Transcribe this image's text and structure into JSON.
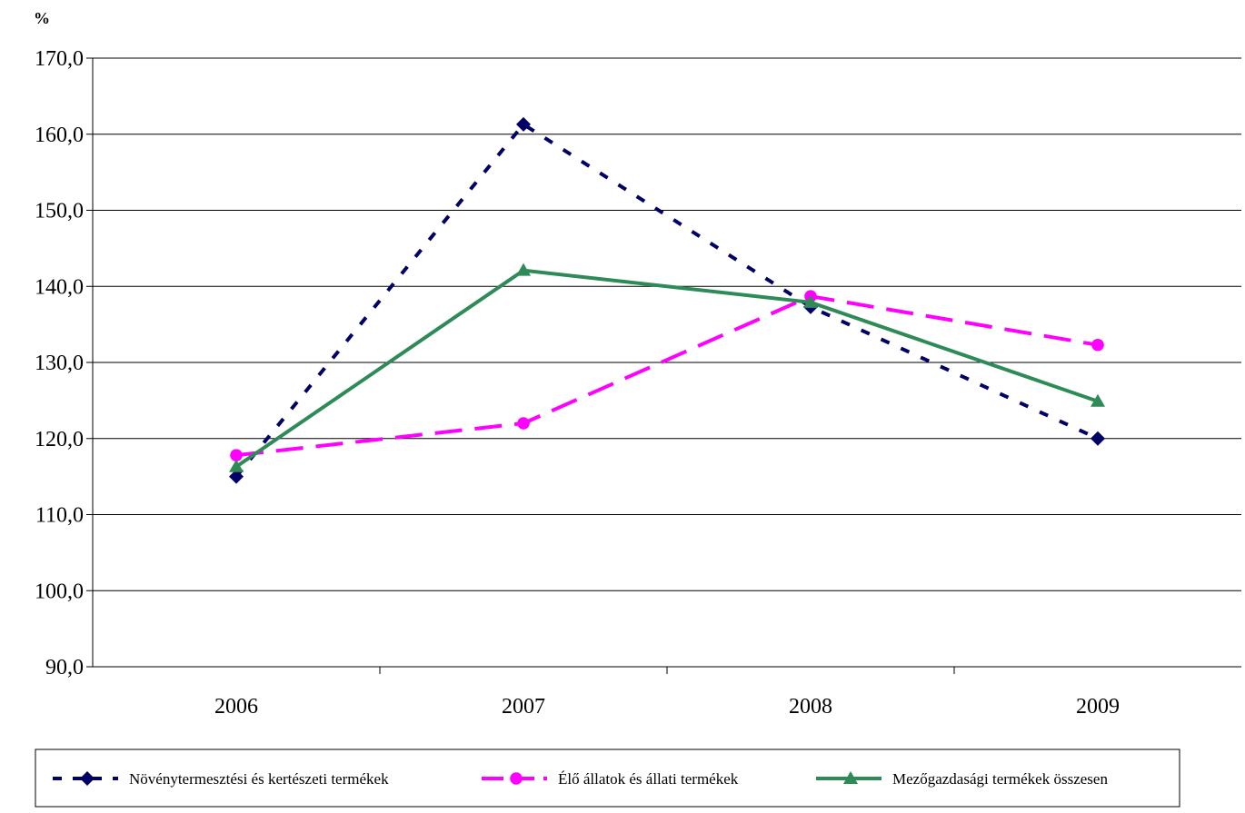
{
  "chart_data": {
    "type": "line",
    "y_unit_label": "%",
    "categories": [
      "2006",
      "2007",
      "2008",
      "2009"
    ],
    "ylim": [
      90,
      170
    ],
    "ytick_step": 10,
    "ytick_labels": [
      "90,0",
      "100,0",
      "110,0",
      "120,0",
      "130,0",
      "140,0",
      "150,0",
      "160,0",
      "170,0"
    ],
    "grid": "horizontal",
    "legend_position": "bottom",
    "series": [
      {
        "name": "Növénytermesztési és kertészeti termékek",
        "values": [
          115.0,
          161.3,
          137.3,
          120.0
        ],
        "color": "#000066",
        "line_style": "dotted",
        "marker": "diamond"
      },
      {
        "name": "Élő állatok és állati termékek",
        "values": [
          117.8,
          122.0,
          138.7,
          132.3
        ],
        "color": "#ff00ff",
        "line_style": "dashed",
        "marker": "circle"
      },
      {
        "name": "Mezőgazdasági termékek összesen",
        "values": [
          116.3,
          142.1,
          137.9,
          124.9
        ],
        "color": "#2e8b57",
        "line_style": "solid",
        "marker": "triangle"
      }
    ]
  }
}
